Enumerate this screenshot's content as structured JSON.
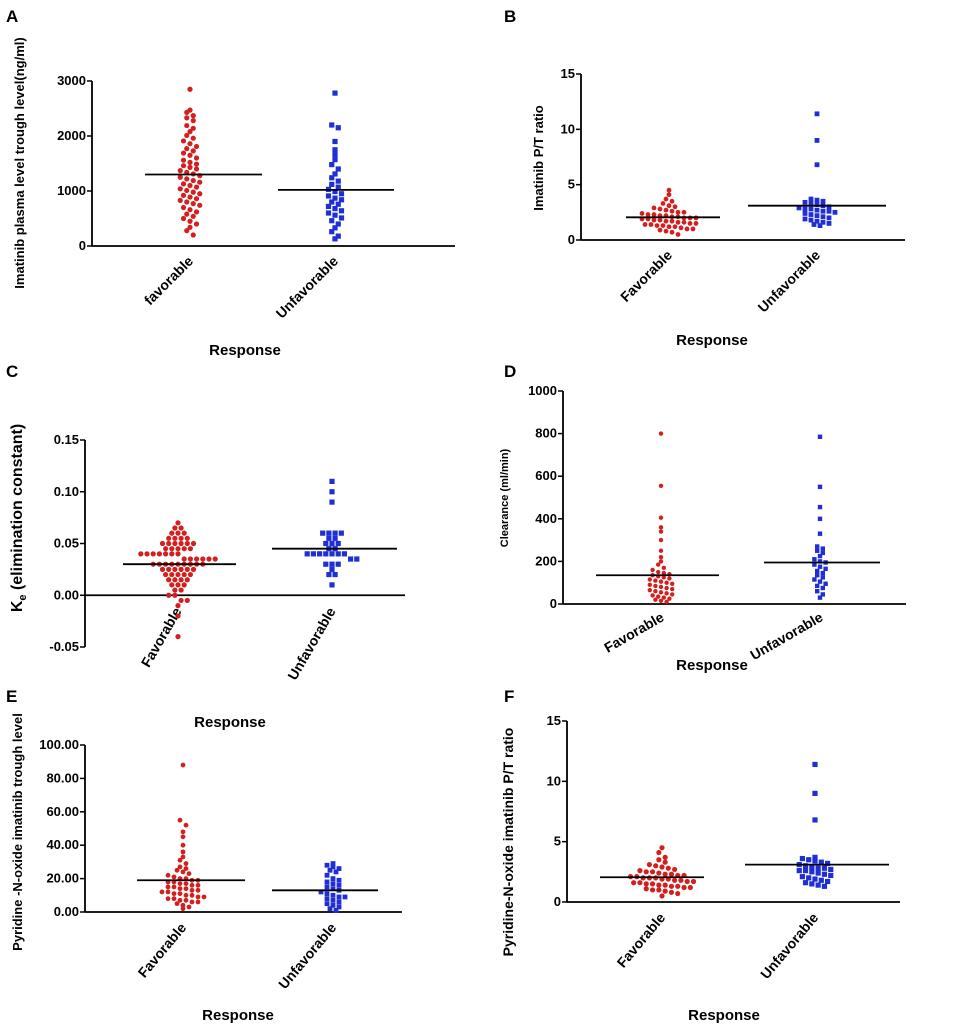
{
  "chart_data": [
    {
      "panel": "A",
      "type": "scatter",
      "ylabel": "Imatinib plasma level trough level(ng/ml)",
      "xlabel": "Response",
      "categories": [
        "favorable",
        "Unfavorable"
      ],
      "ylim": [
        0,
        3000
      ],
      "yticks": [
        "0",
        "1000",
        "2000",
        "3000"
      ],
      "ytick_values": [
        0,
        1000,
        2000,
        3000
      ],
      "colors": [
        "#d41f1f",
        "#1f2fd4"
      ],
      "markers": [
        "circle",
        "square"
      ],
      "series": [
        {
          "name": "favorable",
          "median": 1300,
          "values": [
            2850,
            2470,
            2430,
            2370,
            2330,
            2280,
            2190,
            2140,
            2080,
            2010,
            1960,
            1910,
            1860,
            1810,
            1770,
            1730,
            1690,
            1650,
            1600,
            1560,
            1520,
            1490,
            1460,
            1430,
            1400,
            1370,
            1340,
            1310,
            1280,
            1250,
            1220,
            1190,
            1160,
            1130,
            1100,
            1070,
            1040,
            1010,
            980,
            950,
            920,
            890,
            860,
            830,
            800,
            770,
            740,
            700,
            660,
            620,
            580,
            540,
            500,
            450,
            400,
            340,
            280,
            200
          ]
        },
        {
          "name": "Unfavorable",
          "median": 1020,
          "values": [
            2780,
            2200,
            2150,
            1900,
            1750,
            1660,
            1570,
            1480,
            1400,
            1310,
            1240,
            1180,
            1120,
            1070,
            1030,
            990,
            950,
            910,
            870,
            840,
            800,
            760,
            720,
            680,
            640,
            600,
            560,
            510,
            460,
            400,
            330,
            260,
            180,
            130
          ]
        }
      ]
    },
    {
      "panel": "B",
      "type": "scatter",
      "ylabel": "Imatinib P/T ratio",
      "xlabel": "Response",
      "categories": [
        "Favorable",
        "Unfavorable"
      ],
      "ylim": [
        0,
        15
      ],
      "yticks": [
        "0",
        "5",
        "10",
        "15"
      ],
      "ytick_values": [
        0,
        5,
        10,
        15
      ],
      "colors": [
        "#d41f1f",
        "#1f2fd4"
      ],
      "markers": [
        "circle",
        "square"
      ],
      "series": [
        {
          "name": "Favorable",
          "median": 2.05,
          "values": [
            4.5,
            4.1,
            3.7,
            3.5,
            3.3,
            3.1,
            3.0,
            2.9,
            2.8,
            2.7,
            2.6,
            2.5,
            2.5,
            2.4,
            2.3,
            2.3,
            2.2,
            2.2,
            2.1,
            2.1,
            2.0,
            2.0,
            2.0,
            1.9,
            1.9,
            1.8,
            1.8,
            1.7,
            1.7,
            1.6,
            1.6,
            1.5,
            1.5,
            1.4,
            1.4,
            1.3,
            1.3,
            1.2,
            1.2,
            1.1,
            1.0,
            1.0,
            0.9,
            0.8,
            0.7,
            0.5
          ]
        },
        {
          "name": "Unfavorable",
          "median": 3.1,
          "values": [
            11.4,
            9.0,
            6.8,
            3.7,
            3.6,
            3.5,
            3.4,
            3.3,
            3.2,
            3.1,
            3.0,
            2.9,
            2.8,
            2.8,
            2.7,
            2.6,
            2.6,
            2.5,
            2.4,
            2.3,
            2.2,
            2.1,
            2.0,
            1.9,
            1.8,
            1.7,
            1.6,
            1.5,
            1.4,
            1.3
          ]
        }
      ]
    },
    {
      "panel": "C",
      "type": "scatter",
      "ylabel_main": "K",
      "ylabel_sub": "e",
      "ylabel_rest": " (elimination constant)",
      "xlabel": "Response",
      "categories": [
        "Favorable",
        "Unfavorable"
      ],
      "ylim": [
        -0.05,
        0.15
      ],
      "yticks": [
        "-0.05",
        "0.00",
        "0.05",
        "0.10",
        "0.15"
      ],
      "ytick_values": [
        -0.05,
        0.0,
        0.05,
        0.1,
        0.15
      ],
      "colors": [
        "#d41f1f",
        "#1f2fd4"
      ],
      "markers": [
        "circle",
        "square"
      ],
      "series": [
        {
          "name": "Favorable",
          "median": 0.03,
          "values": [
            0.07,
            0.065,
            0.065,
            0.06,
            0.06,
            0.06,
            0.055,
            0.055,
            0.055,
            0.055,
            0.05,
            0.05,
            0.05,
            0.05,
            0.05,
            0.05,
            0.045,
            0.045,
            0.045,
            0.045,
            0.045,
            0.04,
            0.04,
            0.04,
            0.04,
            0.04,
            0.04,
            0.04,
            0.035,
            0.035,
            0.035,
            0.035,
            0.035,
            0.035,
            0.03,
            0.03,
            0.03,
            0.03,
            0.03,
            0.03,
            0.03,
            0.03,
            0.03,
            0.025,
            0.025,
            0.025,
            0.025,
            0.025,
            0.025,
            0.02,
            0.02,
            0.02,
            0.02,
            0.02,
            0.015,
            0.015,
            0.015,
            0.015,
            0.01,
            0.01,
            0.01,
            0.005,
            0.005,
            0.0,
            0.0,
            -0.005,
            -0.005,
            -0.01,
            -0.02,
            -0.04
          ]
        },
        {
          "name": "Unfavorable",
          "median": 0.045,
          "values": [
            0.11,
            0.1,
            0.09,
            0.06,
            0.06,
            0.06,
            0.06,
            0.055,
            0.055,
            0.05,
            0.05,
            0.05,
            0.045,
            0.045,
            0.04,
            0.04,
            0.04,
            0.04,
            0.04,
            0.04,
            0.04,
            0.035,
            0.035,
            0.03,
            0.03,
            0.03,
            0.025,
            0.02,
            0.02,
            0.01
          ]
        }
      ]
    },
    {
      "panel": "D",
      "type": "scatter",
      "ylabel": "Clearance (ml/min)",
      "xlabel": "Response",
      "categories": [
        "Favorable",
        "Unfavorable"
      ],
      "ylim": [
        0,
        1000
      ],
      "yticks": [
        "0",
        "200",
        "400",
        "600",
        "800",
        "1000"
      ],
      "ytick_values": [
        0,
        200,
        400,
        600,
        800,
        1000
      ],
      "colors": [
        "#d41f1f",
        "#1f2fd4"
      ],
      "markers": [
        "circle",
        "square"
      ],
      "series": [
        {
          "name": "Favorable",
          "median": 135,
          "values": [
            800,
            555,
            405,
            360,
            340,
            300,
            250,
            220,
            200,
            185,
            170,
            160,
            150,
            145,
            140,
            135,
            130,
            125,
            120,
            115,
            110,
            105,
            100,
            95,
            90,
            85,
            80,
            75,
            70,
            65,
            60,
            55,
            50,
            45,
            40,
            35,
            30,
            25,
            20,
            15,
            10
          ]
        },
        {
          "name": "Unfavorable",
          "median": 195,
          "values": [
            785,
            550,
            455,
            400,
            330,
            270,
            260,
            250,
            240,
            225,
            210,
            200,
            195,
            185,
            175,
            165,
            155,
            145,
            135,
            125,
            115,
            105,
            95,
            85,
            75,
            60,
            45,
            30
          ]
        }
      ]
    },
    {
      "panel": "E",
      "type": "scatter",
      "ylabel": "Pyridine -N-oxide imatinib trough level",
      "xlabel": "Response",
      "categories": [
        "Favorable",
        "Unfavorable"
      ],
      "ylim": [
        0,
        100
      ],
      "yticks": [
        "0.00",
        "20.00",
        "40.00",
        "60.00",
        "80.00",
        "100.00"
      ],
      "ytick_values": [
        0,
        20,
        40,
        60,
        80,
        100
      ],
      "colors": [
        "#d41f1f",
        "#1f2fd4"
      ],
      "markers": [
        "circle",
        "square"
      ],
      "series": [
        {
          "name": "Favorable",
          "median": 19,
          "values": [
            88,
            55,
            52,
            48,
            45,
            40,
            36,
            33,
            31,
            29,
            27,
            26,
            25,
            24,
            23,
            22,
            21,
            20,
            20,
            19,
            19,
            18,
            18,
            17,
            17,
            16,
            16,
            15,
            15,
            14,
            14,
            13,
            13,
            12,
            12,
            11,
            11,
            10,
            10,
            9,
            9,
            8,
            8,
            7,
            7,
            6,
            6,
            5,
            4,
            3,
            2
          ]
        },
        {
          "name": "Unfavorable",
          "median": 13,
          "values": [
            29,
            28,
            27,
            26,
            25,
            24,
            22,
            20,
            19,
            18,
            17,
            16,
            15,
            14,
            13,
            12,
            11,
            10,
            9,
            9,
            8,
            7,
            6,
            5,
            4,
            3,
            2,
            1
          ]
        }
      ]
    },
    {
      "panel": "F",
      "type": "scatter",
      "ylabel": "Pyridine-N-oxide imatinib P/T ratio",
      "xlabel": "Response",
      "categories": [
        "Favorable",
        "Unfavorable"
      ],
      "ylim": [
        0,
        15
      ],
      "yticks": [
        "0",
        "5",
        "10",
        "15"
      ],
      "ytick_values": [
        0,
        5,
        10,
        15
      ],
      "colors": [
        "#d41f1f",
        "#1f2fd4"
      ],
      "markers": [
        "circle",
        "square"
      ],
      "series": [
        {
          "name": "Favorable",
          "median": 2.05,
          "values": [
            4.5,
            4.1,
            3.7,
            3.5,
            3.3,
            3.1,
            3.0,
            2.9,
            2.8,
            2.7,
            2.6,
            2.5,
            2.5,
            2.4,
            2.3,
            2.3,
            2.2,
            2.2,
            2.1,
            2.1,
            2.0,
            2.0,
            2.0,
            1.9,
            1.9,
            1.8,
            1.8,
            1.7,
            1.7,
            1.6,
            1.6,
            1.5,
            1.5,
            1.4,
            1.4,
            1.3,
            1.3,
            1.2,
            1.2,
            1.1,
            1.0,
            1.0,
            0.9,
            0.8,
            0.7,
            0.5
          ]
        },
        {
          "name": "Unfavorable",
          "median": 3.1,
          "values": [
            11.4,
            9.0,
            6.8,
            3.7,
            3.6,
            3.5,
            3.4,
            3.3,
            3.2,
            3.1,
            3.0,
            2.9,
            2.8,
            2.8,
            2.7,
            2.6,
            2.6,
            2.5,
            2.4,
            2.3,
            2.2,
            2.1,
            2.0,
            1.9,
            1.8,
            1.7,
            1.6,
            1.5,
            1.4,
            1.3
          ]
        }
      ]
    }
  ]
}
